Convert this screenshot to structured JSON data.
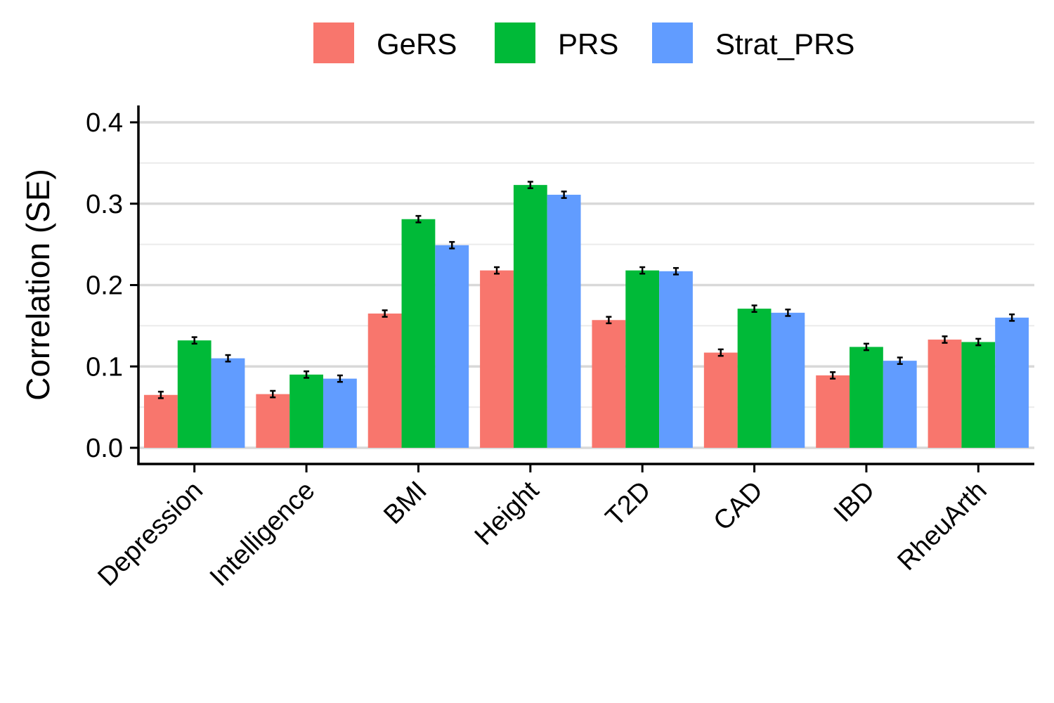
{
  "chart_data": {
    "type": "bar",
    "ylabel": "Correlation (SE)",
    "xlabel": "",
    "ylim": [
      0,
      0.42
    ],
    "yticks": [
      "0.0",
      "0.1",
      "0.2",
      "0.3",
      "0.4"
    ],
    "ytick_values": [
      0.0,
      0.1,
      0.2,
      0.3,
      0.4
    ],
    "grid": true,
    "legend_position": "top",
    "categories": [
      "Depression",
      "Intelligence",
      "BMI",
      "Height",
      "T2D",
      "CAD",
      "IBD",
      "RheuArth"
    ],
    "series": [
      {
        "name": "GeRS",
        "color": "#F8766D",
        "values": [
          0.065,
          0.066,
          0.165,
          0.218,
          0.157,
          0.117,
          0.089,
          0.133
        ],
        "se": [
          0.004,
          0.004,
          0.004,
          0.004,
          0.004,
          0.004,
          0.004,
          0.004
        ]
      },
      {
        "name": "PRS",
        "color": "#00BA38",
        "values": [
          0.132,
          0.09,
          0.281,
          0.323,
          0.218,
          0.171,
          0.124,
          0.13
        ],
        "se": [
          0.004,
          0.004,
          0.004,
          0.004,
          0.004,
          0.004,
          0.004,
          0.004
        ]
      },
      {
        "name": "Strat_PRS",
        "color": "#619CFF",
        "values": [
          0.11,
          0.085,
          0.249,
          0.311,
          0.217,
          0.166,
          0.107,
          0.16
        ],
        "se": [
          0.004,
          0.004,
          0.004,
          0.004,
          0.004,
          0.004,
          0.004,
          0.004
        ]
      }
    ]
  }
}
